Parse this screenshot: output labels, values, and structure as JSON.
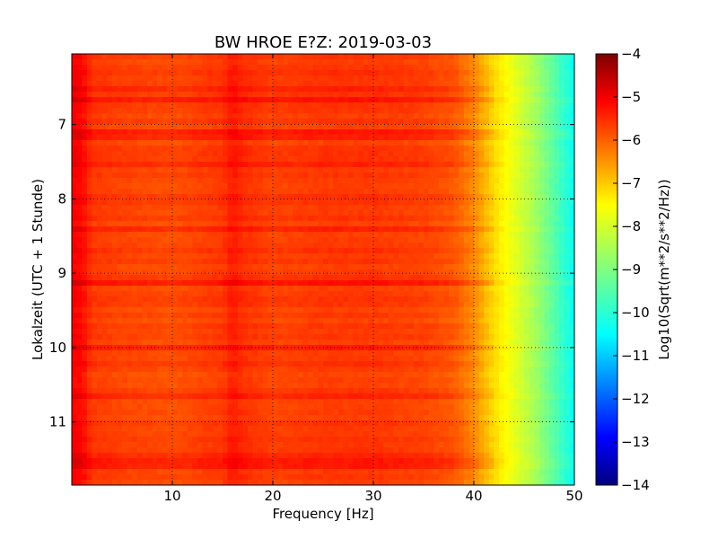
{
  "chart_data": {
    "type": "heatmap",
    "title": "BW HROE E?Z: 2019-03-03",
    "xlabel": "Frequency [Hz]",
    "ylabel": "Lokalzeit (UTC + 1 Stunde)",
    "colorbar_label": "Log10(Sqrt(m**2/s**2/Hz))",
    "xlim": [
      0,
      50
    ],
    "ylim": [
      6.05,
      11.85
    ],
    "y_inverted": true,
    "x_ticks": [
      10,
      20,
      30,
      40,
      50
    ],
    "x_tick_labels": [
      "10",
      "20",
      "30",
      "40",
      "50"
    ],
    "y_ticks": [
      7,
      8,
      9,
      10,
      11
    ],
    "y_tick_labels": [
      "7",
      "8",
      "9",
      "10",
      "11"
    ],
    "color_range": [
      -14,
      -4
    ],
    "colorbar_ticks": [
      -4,
      -5,
      -6,
      -7,
      -8,
      -9,
      -10,
      -11,
      -12,
      -13,
      -14
    ],
    "colorbar_tick_labels": [
      "−4",
      "−5",
      "−6",
      "−7",
      "−8",
      "−9",
      "−10",
      "−11",
      "−12",
      "−13",
      "−14"
    ],
    "colormap": "jet",
    "grid": true,
    "frequency_profile": {
      "freq_hz": [
        0,
        1,
        2,
        5,
        10,
        15,
        16,
        17,
        20,
        25,
        30,
        35,
        38,
        40,
        42,
        44,
        46,
        48,
        50
      ],
      "log_amplitude": [
        -5.2,
        -5.3,
        -5.8,
        -5.9,
        -6.0,
        -5.8,
        -5.5,
        -5.7,
        -5.9,
        -5.8,
        -5.8,
        -5.9,
        -6.1,
        -6.6,
        -7.4,
        -8.0,
        -8.6,
        -9.4,
        -10.2
      ]
    },
    "strong_time_bands_hours": [
      6.5,
      6.65,
      7.15,
      7.55,
      8.4,
      9.15,
      10.0,
      10.65,
      11.5,
      11.6
    ]
  }
}
